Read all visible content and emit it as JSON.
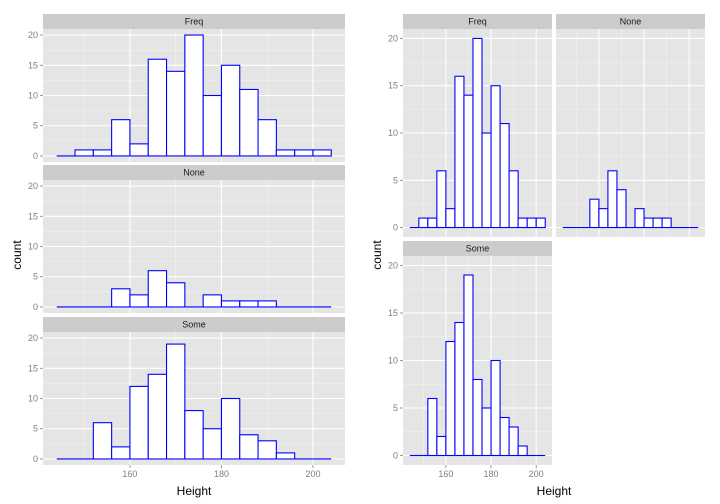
{
  "chart_data": {
    "type": "bar",
    "description_type": "histogram",
    "bin_width": 4,
    "bin_starts": [
      144,
      148,
      152,
      156,
      160,
      164,
      168,
      172,
      176,
      180,
      184,
      188,
      192,
      196,
      200
    ],
    "series": [
      {
        "name": "Freq",
        "values": [
          0,
          1,
          1,
          6,
          2,
          16,
          14,
          20,
          10,
          15,
          11,
          6,
          1,
          1,
          1
        ]
      },
      {
        "name": "None",
        "values": [
          0,
          0,
          0,
          3,
          2,
          6,
          4,
          0,
          2,
          1,
          1,
          1,
          0,
          0,
          0
        ]
      },
      {
        "name": "Some",
        "values": [
          0,
          0,
          6,
          2,
          12,
          14,
          19,
          8,
          5,
          10,
          4,
          3,
          1,
          0,
          0
        ]
      }
    ],
    "xlabel": "Height",
    "ylabel": "count",
    "xlim": [
      141,
      207
    ],
    "ylim": [
      -1,
      21
    ],
    "xticks": [
      160,
      180,
      200
    ],
    "yticks": [
      0,
      5,
      10,
      15,
      20
    ],
    "grid": true,
    "colors": {
      "bar_fill": "#ffffff",
      "bar_outline": "#0000ff",
      "panel_bg": "#e5e5e5",
      "strip_bg": "#cccccc"
    },
    "plots": [
      {
        "name": "left",
        "layout": "facet_grid rows",
        "panels": [
          "Freq",
          "None",
          "Some"
        ]
      },
      {
        "name": "right",
        "layout": "facet_wrap 2 columns",
        "panels": [
          "Freq",
          "None",
          "Some"
        ]
      }
    ]
  }
}
